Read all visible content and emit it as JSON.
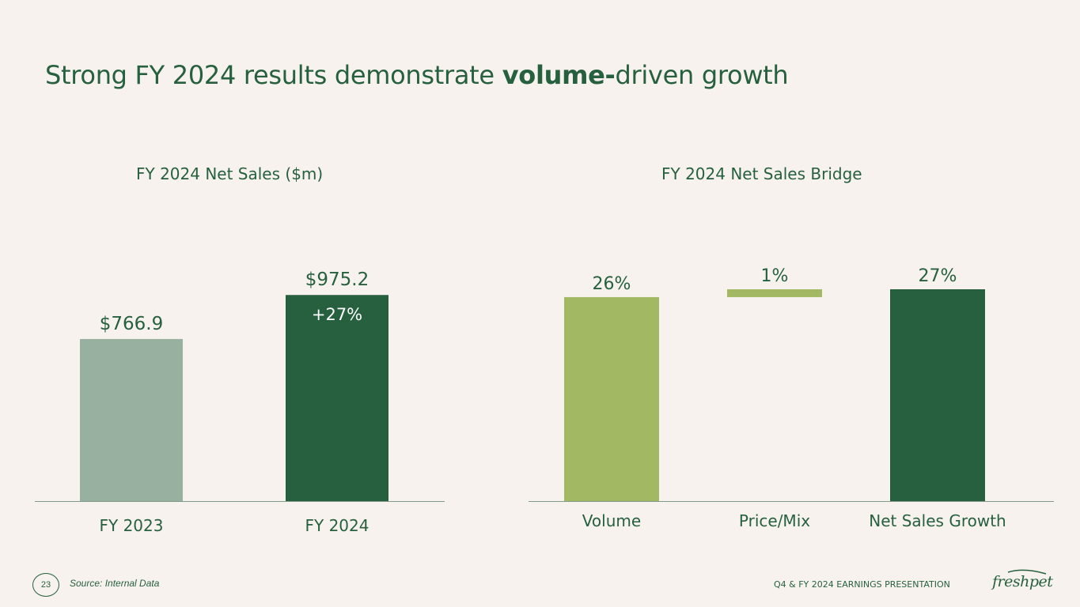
{
  "page": {
    "title_prefix": "Strong FY 2024 results demonstrate ",
    "title_bold": "volume-",
    "title_suffix": "driven growth"
  },
  "chart_data": [
    {
      "type": "bar",
      "title": "FY 2024 Net Sales ($m)",
      "categories": [
        "FY 2023",
        "FY 2024"
      ],
      "values": [
        766.9,
        975.2
      ],
      "value_labels": [
        "$766.9",
        "$975.2"
      ],
      "growth_label": "+27%",
      "colors": [
        "#98b0a0",
        "#27603f"
      ],
      "ylim": [
        0,
        1000
      ],
      "xlabel": "",
      "ylabel": ""
    },
    {
      "type": "waterfall",
      "title": "FY 2024 Net Sales Bridge",
      "categories": [
        "Volume",
        "Price/Mix",
        "Net Sales Growth"
      ],
      "values": [
        26,
        1,
        27
      ],
      "value_labels": [
        "26%",
        "1%",
        "27%"
      ],
      "kinds": [
        "increment",
        "increment",
        "total"
      ],
      "colors": [
        "#a2b862",
        "#a2b862",
        "#27603f"
      ],
      "ylim": [
        0,
        27
      ],
      "xlabel": "",
      "ylabel": ""
    }
  ],
  "footer": {
    "page_number": "23",
    "source": "Source: Internal Data",
    "deck_title": "Q4 & FY 2024 EARNINGS PRESENTATION",
    "logo_text": "freshpet"
  },
  "colors": {
    "background": "#f7f2ee",
    "brand_green": "#27603f"
  }
}
